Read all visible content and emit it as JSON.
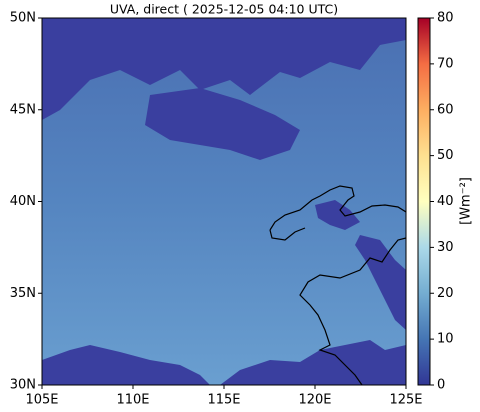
{
  "map_data": {
    "title": "UVA, direct ( 2025-12-05 04:10 UTC)",
    "xlim": [
      105,
      125
    ],
    "ylim": [
      30,
      50
    ],
    "xticks": [
      {
        "value": 105,
        "label": "105E"
      },
      {
        "value": 110,
        "label": "110E"
      },
      {
        "value": 115,
        "label": "115E"
      },
      {
        "value": 120,
        "label": "120E"
      },
      {
        "value": 125,
        "label": "125E"
      }
    ],
    "yticks": [
      {
        "value": 30,
        "label": "30N"
      },
      {
        "value": 35,
        "label": "35N"
      },
      {
        "value": 40,
        "label": "40N"
      },
      {
        "value": 45,
        "label": "45N"
      },
      {
        "value": 50,
        "label": "50N"
      }
    ],
    "colorbar": {
      "label": "[Wm⁻²]",
      "lim": [
        0,
        80
      ],
      "ticks": [
        0,
        10,
        20,
        30,
        40,
        50,
        60,
        70,
        80
      ]
    }
  }
}
